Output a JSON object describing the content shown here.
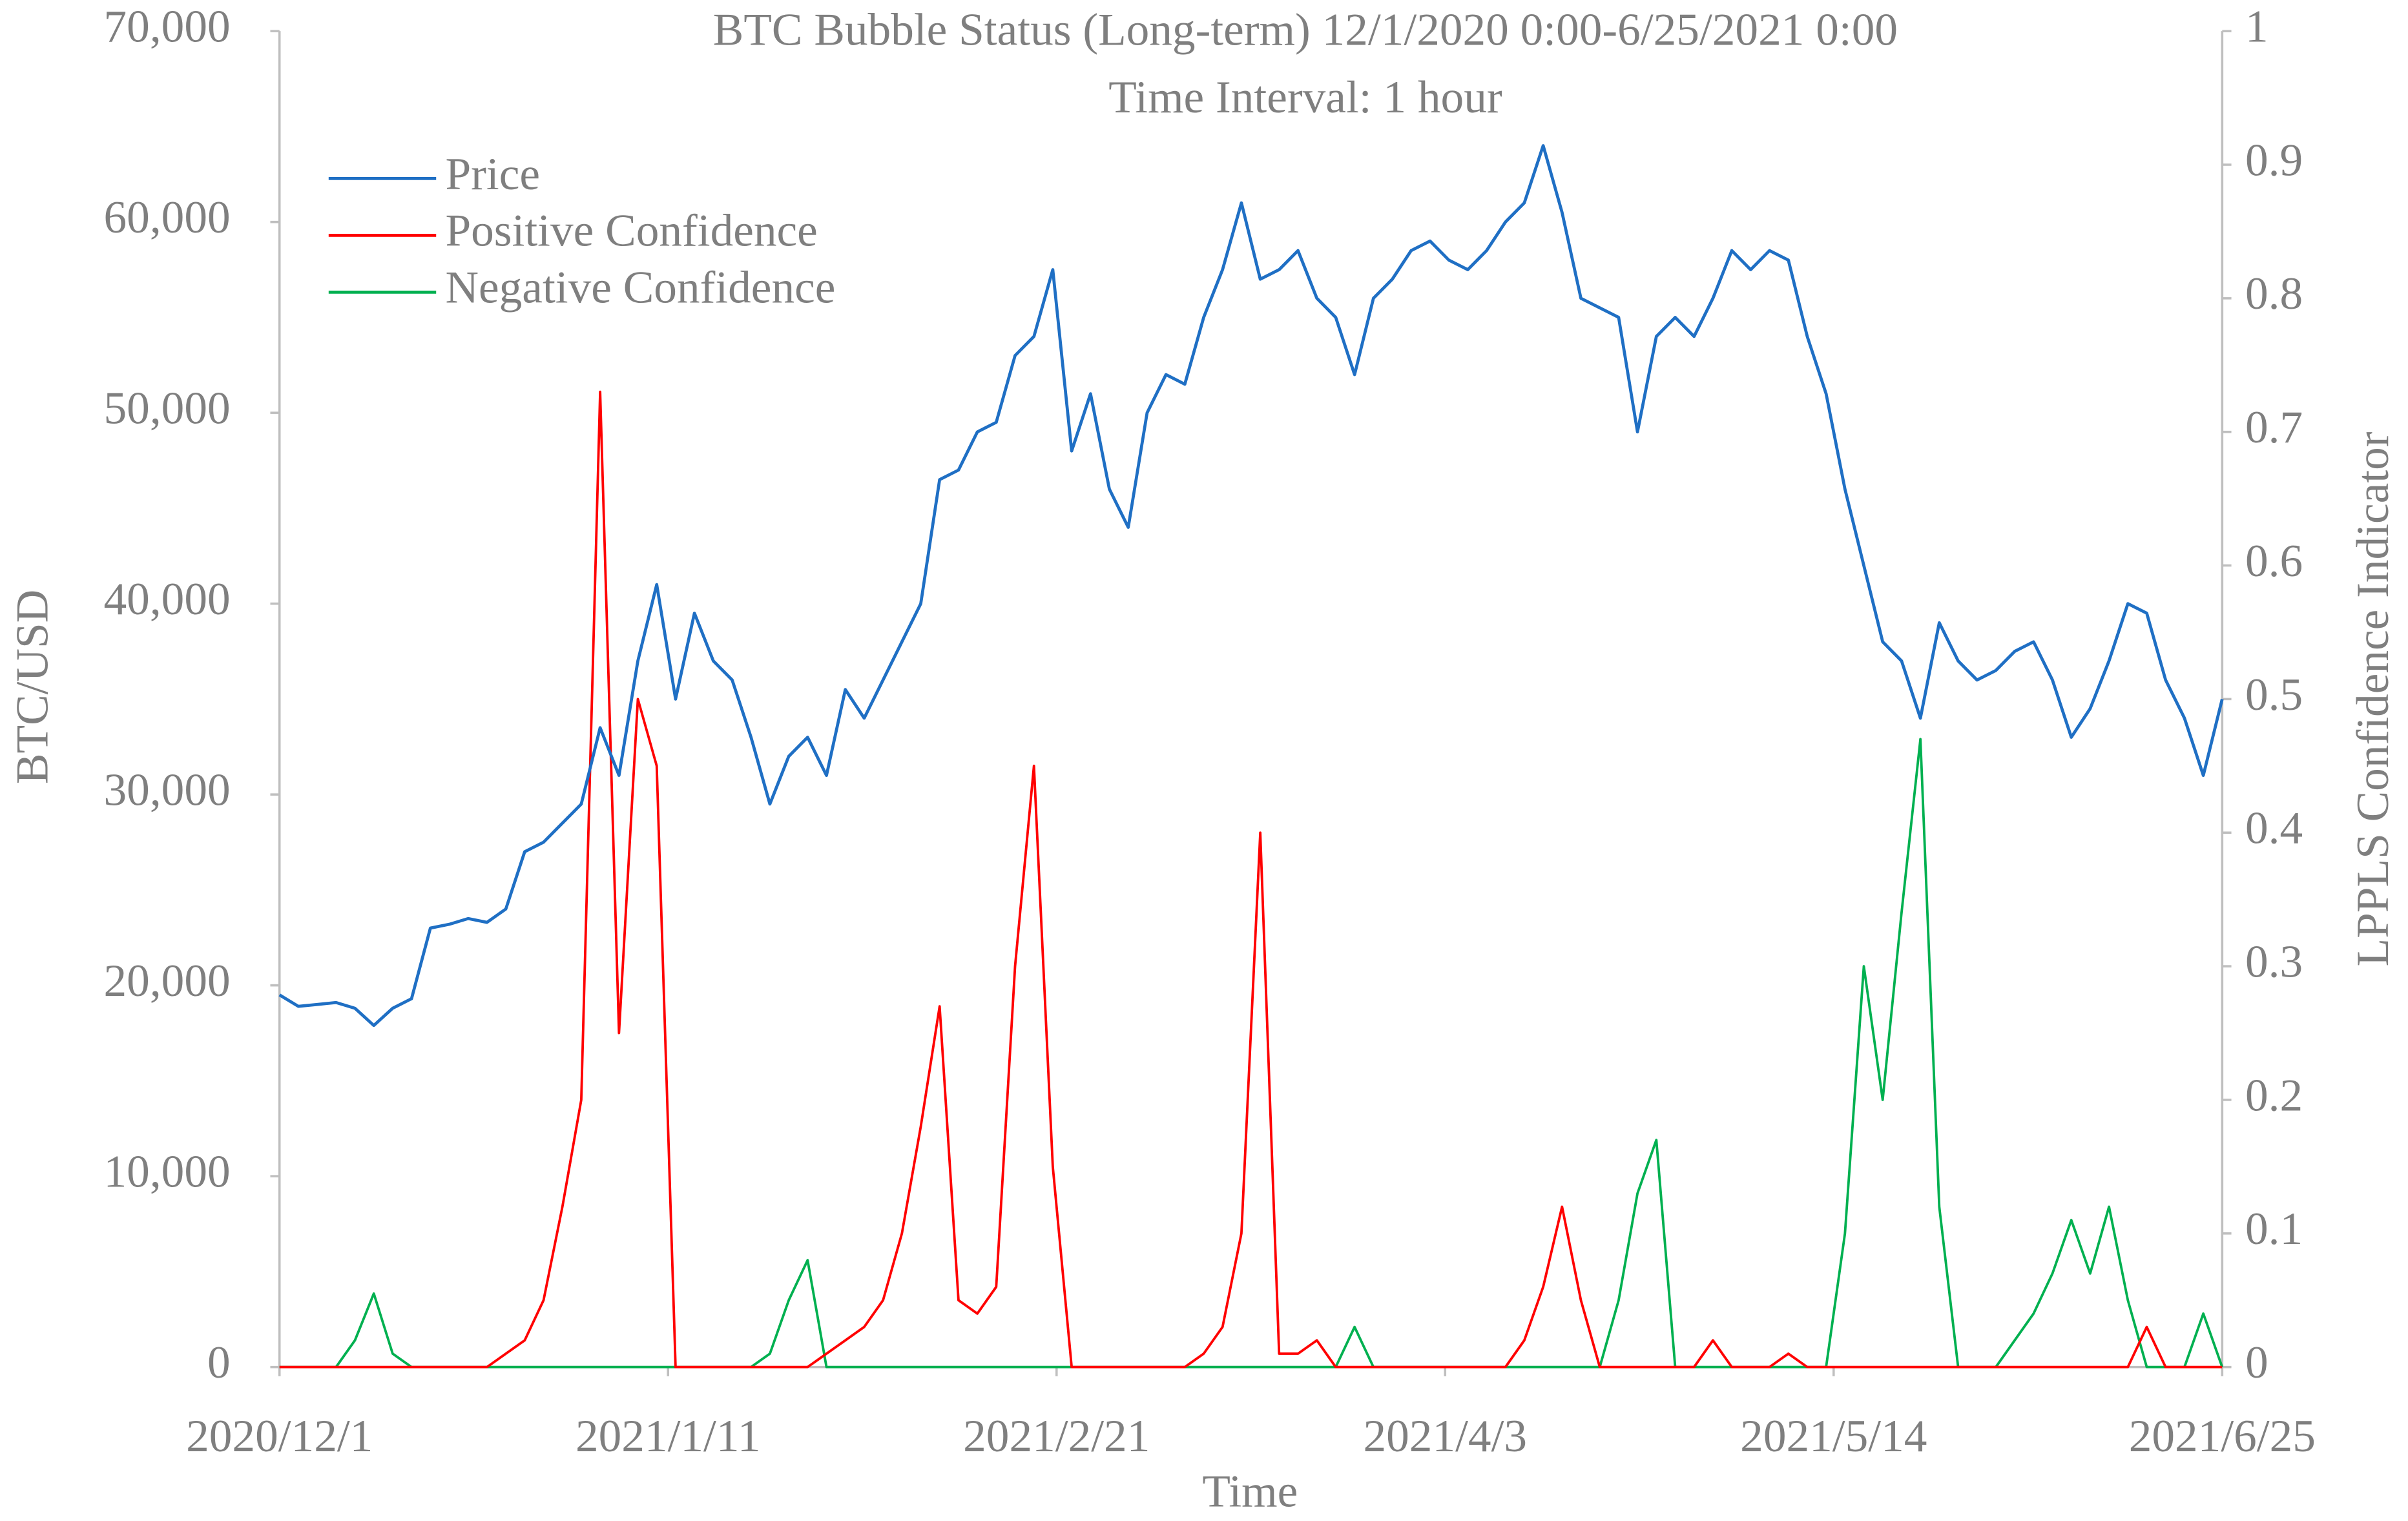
{
  "chart_data": {
    "type": "line",
    "title": "BTC Bubble Status (Long-term) 12/1/2020 0:00-6/25/2021 0:00",
    "subtitle": "Time Interval: 1 hour",
    "x_label": "Time",
    "y_label": "BTC/USD",
    "y2_label": "LPPLS Confidence Indicator",
    "legend": "upper left",
    "x": [
      0,
      2,
      4,
      6,
      8,
      10,
      12,
      14,
      16,
      18,
      20,
      22,
      24,
      26,
      28,
      30,
      32,
      34,
      36,
      38,
      40,
      42,
      44,
      46,
      48,
      50,
      52,
      54,
      56,
      58,
      60,
      62,
      64,
      66,
      68,
      70,
      72,
      74,
      76,
      78,
      80,
      82,
      84,
      86,
      88,
      90,
      92,
      94,
      96,
      98,
      100,
      102,
      104,
      106,
      108,
      110,
      112,
      114,
      116,
      118,
      120,
      122,
      124,
      126,
      128,
      130,
      132,
      134,
      136,
      138,
      140,
      142,
      144,
      146,
      148,
      150,
      152,
      154,
      156,
      158,
      160,
      162,
      164,
      166,
      168,
      170,
      172,
      174,
      176,
      178,
      180,
      182,
      184,
      186,
      188,
      190,
      192,
      194,
      196,
      198,
      200,
      202,
      204,
      206
    ],
    "series": [
      {
        "name": "Price",
        "color": "#1f6fc4",
        "axis": "y",
        "values": [
          19500,
          18900,
          19000,
          19100,
          18800,
          17900,
          18800,
          19300,
          23000,
          23200,
          23500,
          23300,
          24000,
          27000,
          27500,
          28500,
          29500,
          33500,
          31000,
          37000,
          41000,
          35000,
          39500,
          37000,
          36000,
          33000,
          29500,
          32000,
          33000,
          31000,
          35500,
          34000,
          36000,
          38000,
          40000,
          46500,
          47000,
          49000,
          49500,
          53000,
          54000,
          57500,
          48000,
          51000,
          46000,
          44000,
          50000,
          52000,
          51500,
          55000,
          57500,
          61000,
          57000,
          57500,
          58500,
          56000,
          55000,
          52000,
          56000,
          57000,
          58500,
          59000,
          58000,
          57500,
          58500,
          60000,
          61000,
          64000,
          60500,
          56000,
          55500,
          55000,
          49000,
          54000,
          55000,
          54000,
          56000,
          58500,
          57500,
          58500,
          58000,
          54000,
          51000,
          46000,
          42000,
          38000,
          37000,
          34000,
          39000,
          37000,
          36000,
          36500,
          37500,
          38000,
          36000,
          33000,
          34500,
          37000,
          40000,
          39500,
          36000,
          34000,
          31000,
          35000
        ]
      },
      {
        "name": "Positive Confidence",
        "color": "#ff0000",
        "axis": "y2",
        "values": [
          0,
          0,
          0,
          0,
          0,
          0,
          0,
          0,
          0,
          0,
          0,
          0,
          0.01,
          0.02,
          0.05,
          0.12,
          0.2,
          0.73,
          0.25,
          0.5,
          0.45,
          0,
          0,
          0,
          0,
          0,
          0,
          0,
          0,
          0.01,
          0.02,
          0.03,
          0.05,
          0.1,
          0.18,
          0.27,
          0.05,
          0.04,
          0.06,
          0.3,
          0.45,
          0.15,
          0,
          0,
          0,
          0,
          0,
          0,
          0,
          0.01,
          0.03,
          0.1,
          0.4,
          0.01,
          0.01,
          0.02,
          0,
          0,
          0,
          0,
          0,
          0,
          0,
          0,
          0,
          0,
          0.02,
          0.06,
          0.12,
          0.05,
          0,
          0,
          0,
          0,
          0,
          0,
          0.02,
          0,
          0,
          0,
          0.01,
          0,
          0,
          0,
          0,
          0,
          0,
          0,
          0,
          0,
          0,
          0,
          0,
          0,
          0,
          0,
          0,
          0,
          0,
          0.03,
          0,
          0,
          0,
          0
        ]
      },
      {
        "name": "Negative Confidence",
        "color": "#00b050",
        "axis": "y2",
        "values": [
          0,
          0,
          0,
          0,
          0.02,
          0.055,
          0.01,
          0,
          0,
          0,
          0,
          0,
          0,
          0,
          0,
          0,
          0,
          0,
          0,
          0,
          0,
          0,
          0,
          0,
          0,
          0,
          0.01,
          0.05,
          0.08,
          0,
          0,
          0,
          0,
          0,
          0,
          0,
          0,
          0,
          0,
          0,
          0,
          0,
          0,
          0,
          0,
          0,
          0,
          0,
          0,
          0,
          0,
          0,
          0,
          0,
          0,
          0,
          0,
          0.03,
          0,
          0,
          0,
          0,
          0,
          0,
          0,
          0,
          0,
          0,
          0,
          0,
          0,
          0.05,
          0.13,
          0.17,
          0,
          0,
          0,
          0,
          0,
          0,
          0,
          0,
          0,
          0.1,
          0.3,
          0.2,
          0.34,
          0.47,
          0.12,
          0,
          0,
          0,
          0.02,
          0.04,
          0.07,
          0.11,
          0.07,
          0.12,
          0.05,
          0,
          0,
          0,
          0.04,
          0
        ]
      }
    ],
    "xlim": [
      0,
      206
    ],
    "xticks": [
      {
        "value": 0,
        "label": "2020/12/1"
      },
      {
        "value": 41.2,
        "label": "2021/1/11"
      },
      {
        "value": 82.4,
        "label": "2021/2/21"
      },
      {
        "value": 123.6,
        "label": "2021/4/3"
      },
      {
        "value": 164.8,
        "label": "2021/5/14"
      },
      {
        "value": 206,
        "label": "2021/6/25"
      }
    ],
    "ylim": [
      0,
      70000
    ],
    "yticks": [
      0,
      {
        "value": 10000,
        "label": "10,000"
      },
      {
        "value": 20000,
        "label": "20,000"
      },
      {
        "value": 30000,
        "label": "30,000"
      },
      {
        "value": 40000,
        "label": "40,000"
      },
      {
        "value": 50000,
        "label": "50,000"
      },
      {
        "value": 60000,
        "label": "60,000"
      },
      {
        "value": 70000,
        "label": "70,000"
      }
    ],
    "y2lim": [
      0,
      1
    ],
    "y2ticks": [
      0,
      0.1,
      0.2,
      0.3,
      0.4,
      0.5,
      0.6,
      0.7,
      0.8,
      0.9,
      1
    ]
  }
}
